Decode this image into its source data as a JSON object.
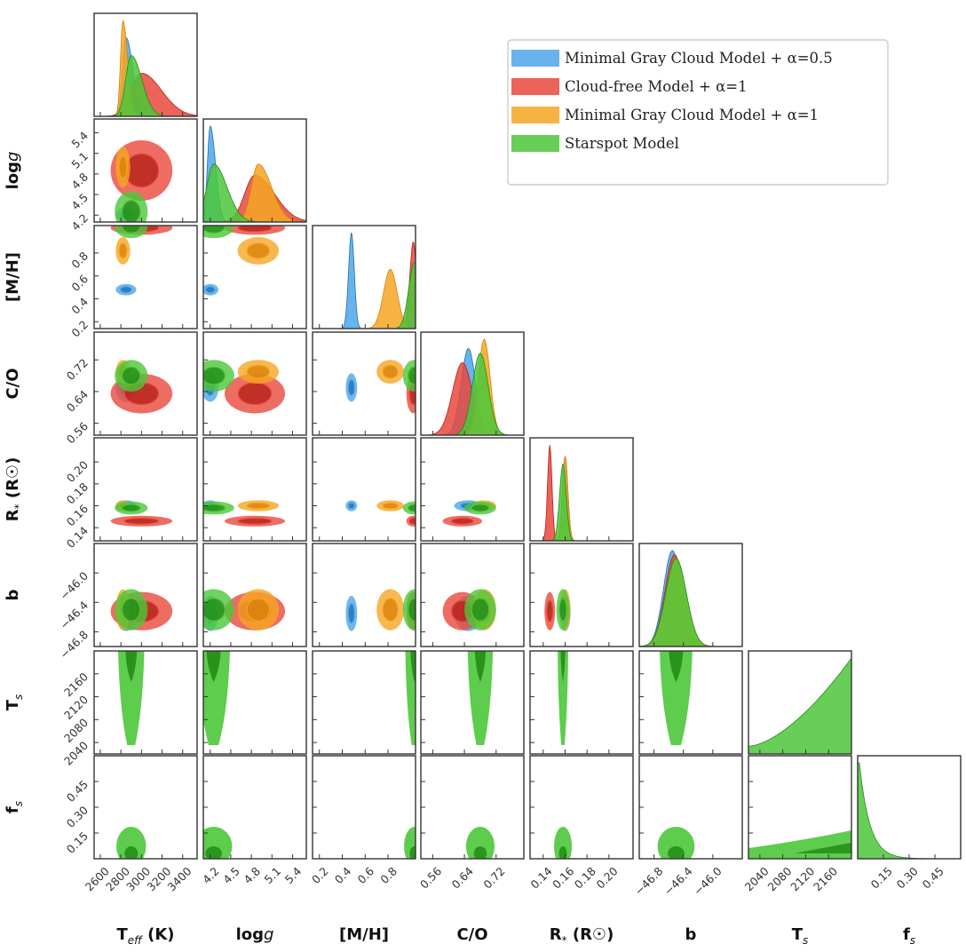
{
  "chart_data": {
    "type": "corner",
    "title": "",
    "parameters": [
      {
        "key": "teff",
        "label": "T",
        "sub": "eff",
        "suffix": " (K)",
        "range": [
          2540,
          3540
        ],
        "ticks": [
          2600,
          2800,
          3000,
          3200,
          3400
        ],
        "tick_labels": [
          "2600",
          "2800",
          "3000",
          "3200",
          "3400"
        ]
      },
      {
        "key": "logg",
        "label": "log",
        "sub": "",
        "suffix": "g",
        "range": [
          4.1,
          5.6
        ],
        "ticks": [
          4.2,
          4.5,
          4.8,
          5.1,
          5.4
        ],
        "tick_labels": [
          "4.2",
          "4.5",
          "4.8",
          "5.1",
          "5.4"
        ]
      },
      {
        "key": "mh",
        "label": "[M/H]",
        "sub": "",
        "suffix": "",
        "range": [
          0.14,
          1.04
        ],
        "ticks": [
          0.2,
          0.4,
          0.6,
          0.8
        ],
        "tick_labels": [
          "0.2",
          "0.4",
          "0.6",
          "0.8"
        ]
      },
      {
        "key": "co",
        "label": "C/O",
        "sub": "",
        "suffix": "",
        "range": [
          0.53,
          0.79
        ],
        "ticks": [
          0.56,
          0.64,
          0.72
        ],
        "tick_labels": [
          "0.56",
          "0.64",
          "0.72"
        ]
      },
      {
        "key": "rstar",
        "label": "R",
        "sub": "*",
        "suffix": " (R☉)",
        "range": [
          0.128,
          0.222
        ],
        "ticks": [
          0.14,
          0.16,
          0.18,
          0.2
        ],
        "tick_labels": [
          "0.14",
          "0.16",
          "0.18",
          "0.20"
        ]
      },
      {
        "key": "b",
        "label": "b",
        "sub": "",
        "suffix": "",
        "range": [
          -47.0,
          -45.6
        ],
        "ticks": [
          -46.8,
          -46.4,
          -46.0
        ],
        "tick_labels": [
          "−46.8",
          "−46.4",
          "−46.0"
        ]
      },
      {
        "key": "ts",
        "label": "T",
        "sub": "s",
        "suffix": "",
        "range": [
          2020,
          2200
        ],
        "ticks": [
          2040,
          2080,
          2120,
          2160
        ],
        "tick_labels": [
          "2040",
          "2080",
          "2120",
          "2160"
        ]
      },
      {
        "key": "fs",
        "label": "f",
        "sub": "s",
        "suffix": "",
        "range": [
          0.0,
          0.6
        ],
        "ticks": [
          0.15,
          0.3,
          0.45
        ],
        "tick_labels": [
          "0.15",
          "0.30",
          "0.45"
        ]
      }
    ],
    "series": [
      {
        "name": "Minimal Gray Cloud Model + α=0.5",
        "color": "#4da6e8",
        "dark": "#1f6fb5",
        "means": {
          "teff": 2850,
          "logg": 4.2,
          "mh": 0.48,
          "co": 0.65,
          "rstar": 0.16,
          "b": -46.55
        },
        "sigmas": {
          "teff": 50,
          "logg": 0.06,
          "mh": 0.025,
          "co": 0.018,
          "rstar": 0.0025,
          "b": 0.12
        }
      },
      {
        "name": "Cloud-free Model + α=1",
        "color": "#e8483c",
        "dark": "#b52018",
        "means": {
          "teff": 3000,
          "logg": 4.85,
          "mh": 1.02,
          "co": 0.635,
          "rstar": 0.146,
          "b": -46.52
        },
        "sigmas": {
          "teff": 150,
          "logg": 0.22,
          "mh": 0.03,
          "co": 0.025,
          "rstar": 0.002,
          "b": 0.13
        }
      },
      {
        "name": "Minimal Gray Cloud Model + α=1",
        "color": "#f5a623",
        "dark": "#d9820a",
        "means": {
          "teff": 2820,
          "logg": 4.9,
          "mh": 0.82,
          "co": 0.69,
          "rstar": 0.16,
          "b": -46.5
        },
        "sigmas": {
          "teff": 35,
          "logg": 0.15,
          "mh": 0.06,
          "co": 0.015,
          "rstar": 0.0025,
          "b": 0.14
        }
      },
      {
        "name": "Starspot Model",
        "color": "#4cc73a",
        "dark": "#228c16",
        "means": {
          "teff": 2900,
          "logg": 4.25,
          "mh": 1.03,
          "co": 0.68,
          "rstar": 0.158,
          "b": -46.5,
          "ts": 2190,
          "fs": 0.05
        },
        "sigmas": {
          "teff": 80,
          "logg": 0.15,
          "mh": 0.05,
          "co": 0.02,
          "rstar": 0.003,
          "b": 0.14,
          "ts": 40,
          "fs": 0.05
        }
      }
    ],
    "legend": {
      "location": "top-right"
    }
  }
}
